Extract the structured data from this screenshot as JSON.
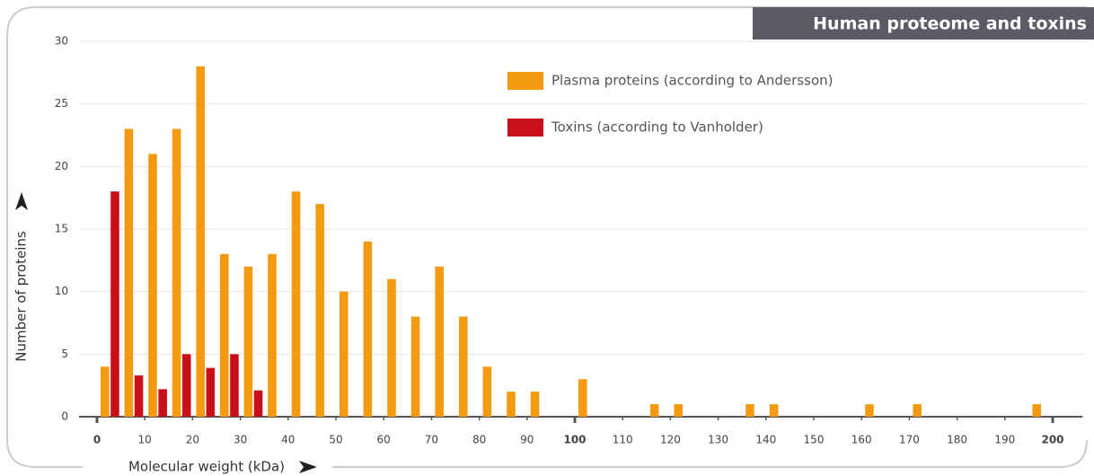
{
  "chart_data": {
    "type": "bar",
    "title": "Human proteome and toxins",
    "x_label": "Molecular weight (kDa)",
    "y_label": "Number of proteins",
    "x": [
      0,
      5,
      10,
      15,
      20,
      25,
      30,
      35,
      40,
      45,
      50,
      55,
      60,
      65,
      70,
      75,
      80,
      85,
      90,
      95,
      100,
      105,
      110,
      115,
      120,
      125,
      130,
      135,
      140,
      145,
      150,
      155,
      160,
      165,
      170,
      175,
      180,
      185,
      190,
      195
    ],
    "bin_width": 5,
    "series": [
      {
        "name": "Plasma proteins (according to Andersson)",
        "color": "#f39a12",
        "values": [
          4,
          23,
          21,
          23,
          28,
          13,
          12,
          13,
          18,
          17,
          10,
          14,
          11,
          8,
          12,
          8,
          4,
          2,
          2,
          0,
          3,
          0,
          0,
          1,
          1,
          0,
          0,
          1,
          1,
          0,
          0,
          0,
          1,
          0,
          1,
          0,
          0,
          0,
          0,
          1
        ]
      },
      {
        "name": "Toxins (according to Vanholder)",
        "color": "#c8101a",
        "values": [
          18,
          3.3,
          2.2,
          5,
          3.9,
          5,
          2.1,
          0,
          0,
          0,
          0,
          0,
          0,
          0,
          0,
          0,
          0,
          0,
          0,
          0,
          0,
          0,
          0,
          0,
          0,
          0,
          0,
          0,
          0,
          0,
          0,
          0,
          0,
          0,
          0,
          0,
          0,
          0,
          0,
          0
        ]
      }
    ],
    "xlim": [
      0,
      200
    ],
    "xticks": [
      0,
      10,
      20,
      30,
      40,
      50,
      60,
      70,
      80,
      90,
      100,
      110,
      120,
      130,
      140,
      150,
      160,
      170,
      180,
      190,
      200
    ],
    "ylim": [
      0,
      30
    ],
    "yticks": [
      0,
      5,
      10,
      15,
      20,
      25,
      30
    ],
    "grid": true,
    "legend": "top"
  }
}
